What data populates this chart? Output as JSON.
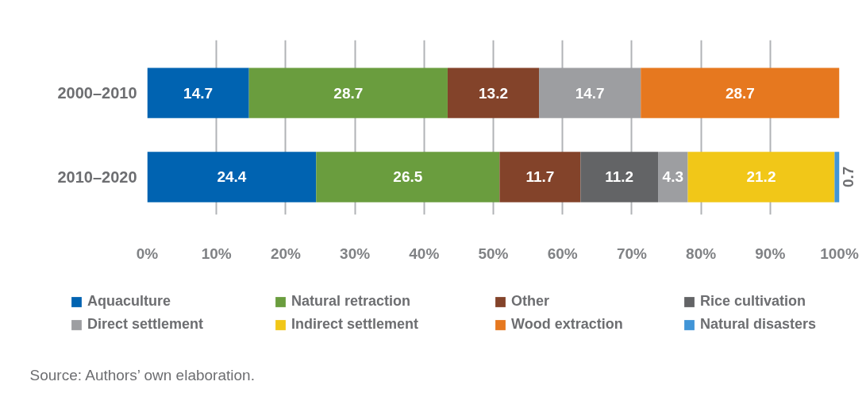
{
  "chart_data": {
    "type": "bar",
    "orientation": "horizontal",
    "stacked": true,
    "categories": [
      "2000–2010",
      "2010–2020"
    ],
    "series": [
      {
        "name": "Aquaculture",
        "color": "#0063b1",
        "values": [
          14.7,
          24.4
        ]
      },
      {
        "name": "Natural retraction",
        "color": "#6a9d3e",
        "values": [
          28.7,
          26.5
        ]
      },
      {
        "name": "Other",
        "color": "#83432a",
        "values": [
          13.2,
          11.7
        ]
      },
      {
        "name": "Rice cultivation",
        "color": "#636466",
        "values": [
          null,
          11.2
        ]
      },
      {
        "name": "Direct settlement",
        "color": "#9d9ea1",
        "values": [
          14.7,
          4.3
        ]
      },
      {
        "name": "Indirect settlement",
        "color": "#f1c718",
        "values": [
          null,
          21.2
        ]
      },
      {
        "name": "Wood extraction",
        "color": "#e6781f",
        "values": [
          28.7,
          null
        ]
      },
      {
        "name": "Natural disasters",
        "color": "#4195d7",
        "values": [
          null,
          0.7
        ]
      }
    ],
    "xlim": [
      0,
      100
    ],
    "xticks": [
      {
        "value": 0,
        "label": "0%"
      },
      {
        "value": 10,
        "label": "10%"
      },
      {
        "value": 20,
        "label": "20%"
      },
      {
        "value": 30,
        "label": "30%"
      },
      {
        "value": 40,
        "label": "40%"
      },
      {
        "value": 50,
        "label": "50%"
      },
      {
        "value": 60,
        "label": "60%"
      },
      {
        "value": 70,
        "label": "70%"
      },
      {
        "value": 80,
        "label": "80%"
      },
      {
        "value": 90,
        "label": "90%"
      },
      {
        "value": 100,
        "label": "100%"
      }
    ],
    "grid": "x",
    "legend": "bottom",
    "data_labels": true,
    "annotations": [
      "Source: Authors’ own elaboration."
    ]
  }
}
